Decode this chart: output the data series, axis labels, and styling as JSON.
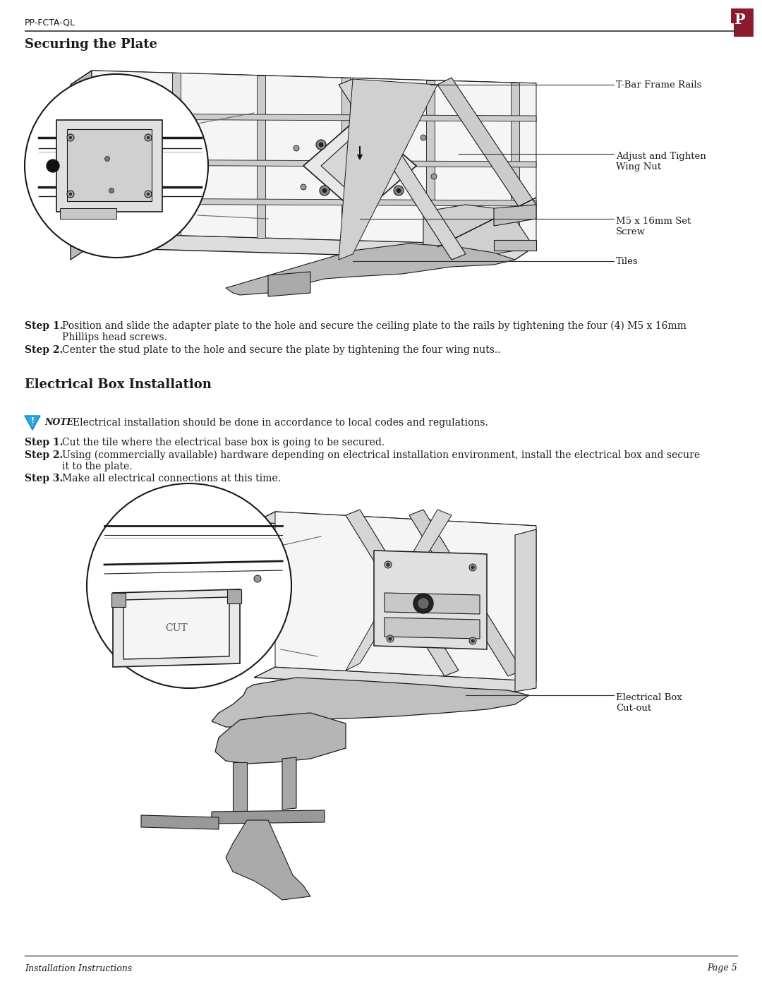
{
  "bg_color": "#ffffff",
  "header_line_color": "#444444",
  "header_text": "PP-FCTA-QL",
  "header_fontsize": 9,
  "logo_color": "#7a1030",
  "section1_title": "Securing the Plate",
  "section2_title": "Electrical Box Installation",
  "footer_left": "Installation Instructions",
  "footer_right": "Page 5",
  "footer_fontsize": 9,
  "text_color": "#1a1a1a",
  "line_color": "#333333",
  "callout1": "T-Bar Frame Rails",
  "callout2": "Adjust and Tighten\nWing Nut",
  "callout3": "M5 x 16mm Set\nScrew",
  "callout4": "Tiles",
  "callout_elec": "Electrical Box\nCut-out",
  "step1_bold": "Step 1.",
  "step1_line1": "Position and slide the adapter plate to the hole and secure the ceiling plate to the rails by tightening the four (4) M5 x 16mm",
  "step1_line2": "Phillips head screws.",
  "step2_bold": "Step 2.",
  "step2_line1": "Center the stud plate to the hole and secure the plate by tightening the four wing nuts..",
  "note_label": "NOTE",
  "note_text": "Electrical installation should be done in accordance to local codes and regulations.",
  "elec_step1_bold": "Step 1.",
  "elec_step1_line1": "Cut the tile where the electrical base box is going to be secured.",
  "elec_step2_bold": "Step 2.",
  "elec_step2_line1": "Using (commercially available) hardware depending on electrical installation environment, install the electrical box and secure",
  "elec_step2_line2": "it to the plate.",
  "elec_step3_bold": "Step 3.",
  "elec_step3_line1": "Make all electrical connections at this time.",
  "cut_label": "CUT"
}
